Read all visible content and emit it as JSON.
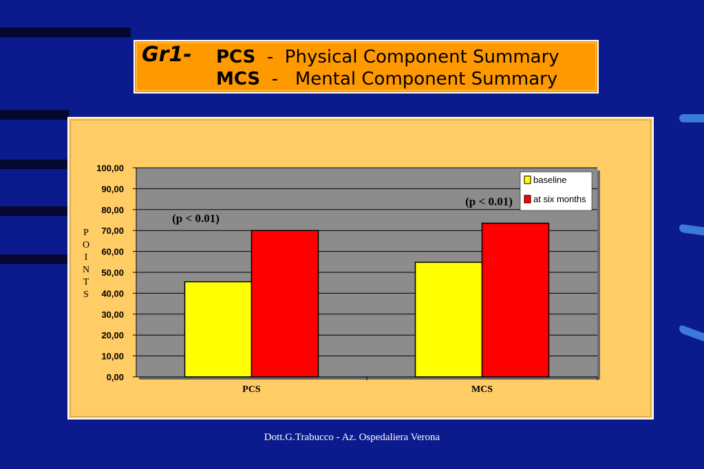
{
  "slide": {
    "title_prefix": "Gr1",
    "title_dash": "-",
    "line1_abbr": "PCS",
    "line1_rest": "  -  Physical Component Summary",
    "line2_abbr": "MCS",
    "line2_rest": "  -   Mental Component Summary",
    "footer": "Dott.G.Trabucco - Az. Ospedaliera Verona"
  },
  "colors": {
    "background": "#0b1a8c",
    "title_box": "#ff9900",
    "chart_panel": "#ffcc66",
    "plot_area": "#8c8c8c",
    "baseline": "#ffff00",
    "six_months": "#ff0000"
  },
  "chart_data": {
    "type": "bar",
    "categories": [
      "PCS",
      "MCS"
    ],
    "series": [
      {
        "name": "baseline",
        "values": [
          45.5,
          54.8
        ],
        "color": "#ffff00"
      },
      {
        "name": "at six months",
        "values": [
          70.0,
          73.5
        ],
        "color": "#ff0000"
      }
    ],
    "ylabel": "POINTS",
    "ylim": [
      0,
      100
    ],
    "yticks": [
      "0,00",
      "10,00",
      "20,00",
      "30,00",
      "40,00",
      "50,00",
      "60,00",
      "70,00",
      "80,00",
      "90,00",
      "100,00"
    ],
    "grid": true,
    "legend_position": "top-right",
    "annotations": [
      "(p < 0.01)",
      "(p < 0.01)"
    ]
  }
}
